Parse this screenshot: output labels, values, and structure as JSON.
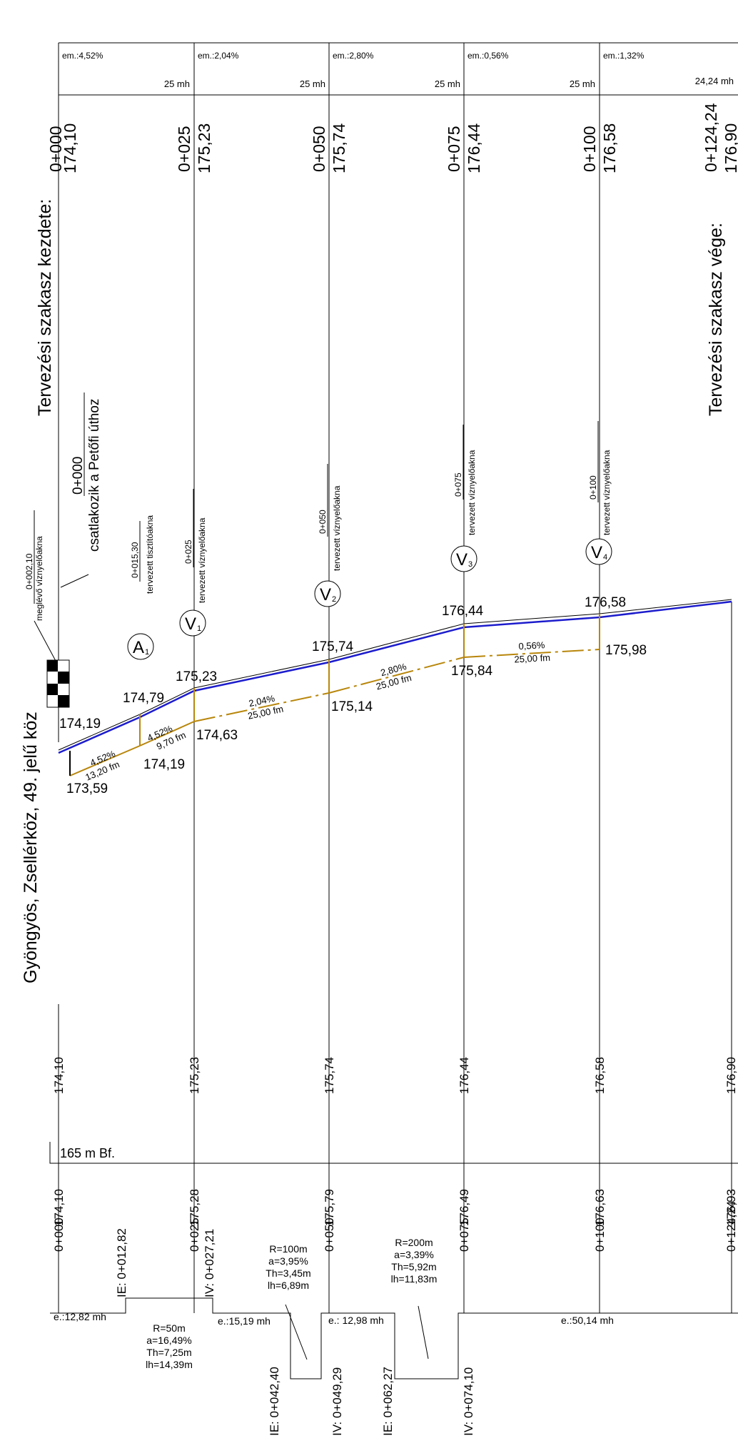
{
  "colors": {
    "terrain": "#1c1ccc",
    "pipe": "#b8860b",
    "line": "#000000"
  },
  "header": {
    "segments": [
      {
        "slope": "em.:4,52%",
        "len": "25 mh"
      },
      {
        "slope": "em.:2,04%",
        "len": "25 mh"
      },
      {
        "slope": "em.:2,80%",
        "len": "25 mh"
      },
      {
        "slope": "em.:0,56%",
        "len": "25 mh"
      },
      {
        "slope": "em.:1,32%",
        "len": "24,24 mh"
      }
    ]
  },
  "stations": [
    {
      "ch": "0+000",
      "level": "174,10",
      "row1": "174,10",
      "row2": "174,10"
    },
    {
      "ch": "0+025",
      "level": "175,23",
      "row1": "175,23",
      "row2": "175,28"
    },
    {
      "ch": "0+050",
      "level": "175,74",
      "row1": "175,74",
      "row2": "175,79"
    },
    {
      "ch": "0+075",
      "level": "176,44",
      "row1": "176,44",
      "row2": "176,49"
    },
    {
      "ch": "0+100",
      "level": "176,58",
      "row1": "176,58",
      "row2": "176,63"
    },
    {
      "ch": "0+124,24",
      "level": "176,90",
      "row1": "176,90",
      "row2": "176,93"
    }
  ],
  "labels": {
    "start": "Tervezési szakasz kezdete:",
    "end": "Tervezési szakasz vége:",
    "street": "Gyöngyös, Zsellérköz, 49. jelű köz",
    "datum": "165 m Bf."
  },
  "annotations": {
    "existing_ch": "0+002,10",
    "existing_text": "meglévő víznyelőakna",
    "connect_ch": "0+000",
    "connect_text": "csatlakozik a Petőfi úthoz",
    "a1_ch": "0+015,30",
    "a1_text": "tervezett tisztítóakna",
    "v_text": "tervezett víznyelőakna"
  },
  "manholes": [
    {
      "id": "A",
      "sub": "1",
      "ch": "0+015,30"
    },
    {
      "id": "V",
      "sub": "1",
      "ch": "0+025"
    },
    {
      "id": "V",
      "sub": "2",
      "ch": "0+050"
    },
    {
      "id": "V",
      "sub": "3",
      "ch": "0+075"
    },
    {
      "id": "V",
      "sub": "4",
      "ch": "0+100"
    }
  ],
  "profile": {
    "terrain_labels": [
      "174,19",
      "174,79",
      "175,23",
      "175,74",
      "176,44",
      "176,58"
    ],
    "pipe_labels": [
      "173,59",
      "174,19",
      "174,63",
      "175,14",
      "175,84",
      "175,98"
    ],
    "pipe_segments": [
      {
        "slope": "4,52%",
        "len": "13,20 fm"
      },
      {
        "slope": "4,52%",
        "len": "9,70 fm"
      },
      {
        "slope": "2,04%",
        "len": "25,00 fm"
      },
      {
        "slope": "2,80%",
        "len": "25,00 fm"
      },
      {
        "slope": "0,56%",
        "len": "25,00 fm"
      }
    ]
  },
  "alignment": {
    "extra_ch": [
      "IE: 0+012,82",
      "IV: 0+027,21",
      "IE: 0+042,40",
      "IV: 0+049,29",
      "IE: 0+062,27",
      "IV: 0+074,10"
    ],
    "straights": [
      "e.:12,82 mh",
      "e.:15,19 mh",
      "e.: 12,98 mh",
      "e.:50,14 mh"
    ],
    "curves": [
      {
        "R": "R=50m",
        "a": "a=16,49%",
        "T": "Th=7,25m",
        "l": "lh=14,39m"
      },
      {
        "R": "R=100m",
        "a": "a=3,95%",
        "T": "Th=3,45m",
        "l": "lh=6,89m"
      },
      {
        "R": "R=200m",
        "a": "a=3,39%",
        "T": "Th=5,92m",
        "l": "lh=11,83m"
      }
    ]
  }
}
